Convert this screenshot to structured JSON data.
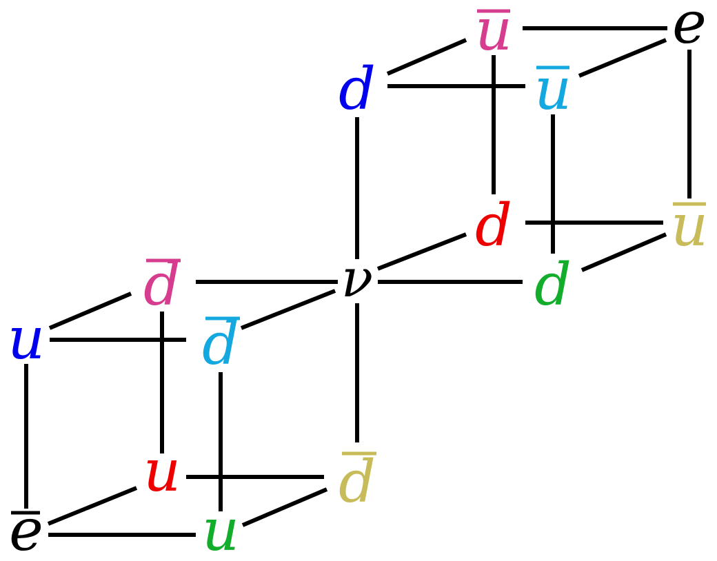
{
  "colors": {
    "black": "#000000",
    "blue": "#0000ee",
    "magenta": "#d63d8e",
    "cyan": "#14a8e0",
    "red": "#ee0000",
    "olive": "#c8bc5a",
    "green": "#12ad2b"
  },
  "nodes": {
    "nu": {
      "letter": "ν",
      "bar": false,
      "color": "black"
    },
    "e_top": {
      "letter": "e",
      "bar": false,
      "color": "black"
    },
    "ubar_magenta": {
      "letter": "u",
      "bar": true,
      "color": "magenta"
    },
    "d_blue": {
      "letter": "d",
      "bar": false,
      "color": "blue"
    },
    "ubar_cyan": {
      "letter": "u",
      "bar": true,
      "color": "cyan"
    },
    "d_red": {
      "letter": "d",
      "bar": false,
      "color": "red"
    },
    "ubar_olive": {
      "letter": "u",
      "bar": true,
      "color": "olive"
    },
    "d_green": {
      "letter": "d",
      "bar": false,
      "color": "green"
    },
    "dbar_magenta": {
      "letter": "d",
      "bar": true,
      "color": "magenta"
    },
    "u_blue": {
      "letter": "u",
      "bar": false,
      "color": "blue"
    },
    "dbar_cyan": {
      "letter": "d",
      "bar": true,
      "color": "cyan"
    },
    "u_red": {
      "letter": "u",
      "bar": false,
      "color": "red"
    },
    "dbar_olive": {
      "letter": "d",
      "bar": true,
      "color": "olive"
    },
    "ebar": {
      "letter": "e",
      "bar": true,
      "color": "black"
    },
    "u_green": {
      "letter": "u",
      "bar": false,
      "color": "green"
    }
  }
}
